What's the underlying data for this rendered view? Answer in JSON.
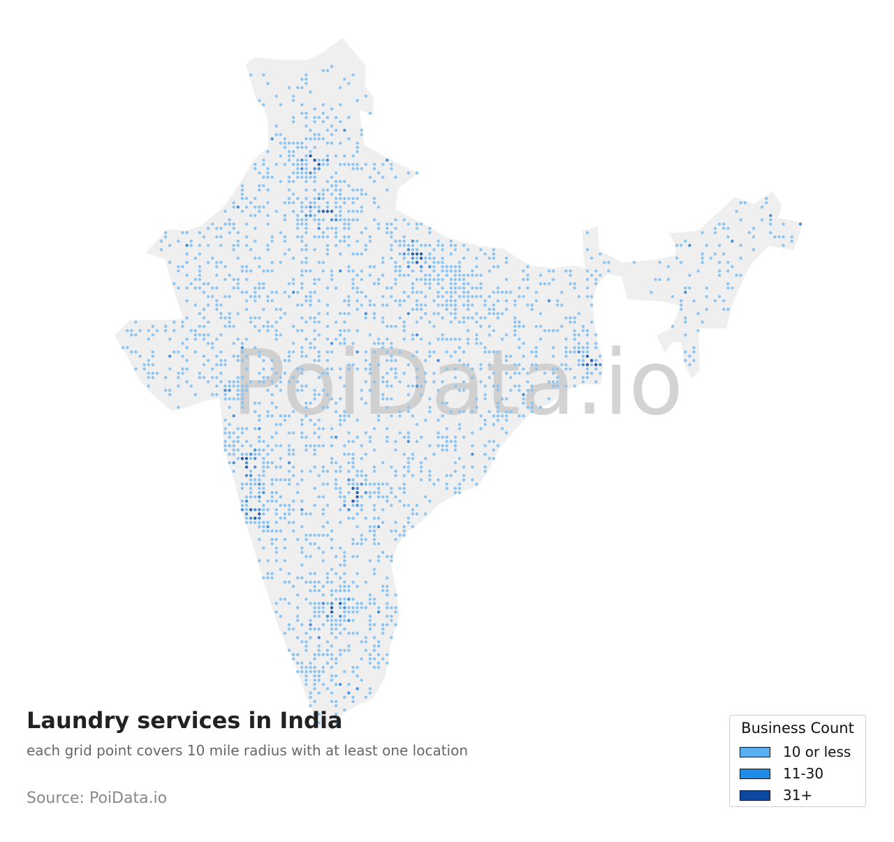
{
  "map": {
    "title": "Laundry services in India",
    "subtitle": "each grid point covers 10 mile radius with at least one location",
    "source": "Source: PoiData.io",
    "watermark": "PoiData.io",
    "land_color": "#efefef",
    "watermark_color": "#c8c8c8"
  },
  "legend": {
    "title": "Business Count",
    "items": [
      {
        "label": "10 or less",
        "color": "#5aaff0"
      },
      {
        "label": "11-30",
        "color": "#1f8be6"
      },
      {
        "label": "31+",
        "color": "#0c48a0"
      }
    ]
  },
  "dot_colors": {
    "low": "#8cc4f2",
    "mid": "#4a90d8",
    "high": "#2a5aa8"
  }
}
